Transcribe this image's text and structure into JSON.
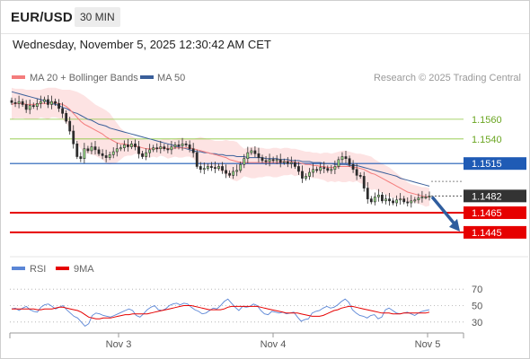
{
  "header": {
    "symbol": "EUR/USD",
    "interval": "30 MIN",
    "datetime": "Wednesday, November 5, 2025 12:30:42 AM CET"
  },
  "legend": {
    "ma20": "MA 20 + Bollinger Bands",
    "ma50": "MA 50",
    "research": "Research © 2025 Trading Central"
  },
  "colors": {
    "ma20": "#f47c7c",
    "ma50": "#3a5f9a",
    "band_fill": "#fde3e3",
    "green_level": "#8cc63f",
    "blue_level": "#1f5bb5",
    "red_level": "#e60000",
    "current": "#333333",
    "arrow": "#2f5d9e",
    "rsi": "#5b86d6",
    "rsi_ma": "#e60000"
  },
  "chart_data": [
    {
      "type": "candlestick",
      "title": "EUR/USD",
      "ylim": [
        1.1423,
        1.159
      ],
      "x_ticks": [
        "Nov 3",
        "Nov 4",
        "Nov 5"
      ],
      "levels": [
        {
          "value": "1.1560",
          "kind": "resistance"
        },
        {
          "value": "1.1540",
          "kind": "resistance"
        },
        {
          "value": "1.1515",
          "kind": "pivot"
        },
        {
          "value": "1.1482",
          "kind": "current"
        },
        {
          "value": "1.1465",
          "kind": "support"
        },
        {
          "value": "1.1445",
          "kind": "support"
        }
      ],
      "closes": [
        1.1577,
        1.1576,
        1.1578,
        1.1575,
        1.157,
        1.1574,
        1.1573,
        1.1576,
        1.1578,
        1.158,
        1.1575,
        1.1578,
        1.1576,
        1.1571,
        1.1566,
        1.1558,
        1.1548,
        1.1535,
        1.1522,
        1.152,
        1.153,
        1.1528,
        1.1532,
        1.1529,
        1.1525,
        1.1523,
        1.1521,
        1.1524,
        1.1527,
        1.153,
        1.1531,
        1.1534,
        1.1532,
        1.1535,
        1.1532,
        1.1525,
        1.1522,
        1.1526,
        1.1529,
        1.1531,
        1.153,
        1.1532,
        1.153,
        1.1529,
        1.1532,
        1.1534,
        1.1533,
        1.1535,
        1.1534,
        1.153,
        1.1526,
        1.1512,
        1.1509,
        1.151,
        1.1512,
        1.1511,
        1.151,
        1.1512,
        1.1508,
        1.1505,
        1.1503,
        1.1507,
        1.1508,
        1.1514,
        1.152,
        1.1526,
        1.1528,
        1.1525,
        1.1521,
        1.1518,
        1.1517,
        1.1519,
        1.1518,
        1.1519,
        1.1516,
        1.1517,
        1.1515,
        1.1516,
        1.1512,
        1.1507,
        1.15,
        1.1502,
        1.1506,
        1.1509,
        1.1508,
        1.1511,
        1.151,
        1.1508,
        1.1509,
        1.1512,
        1.1519,
        1.1522,
        1.152,
        1.1514,
        1.1509,
        1.1503,
        1.1502,
        1.149,
        1.1479,
        1.1476,
        1.1481,
        1.1483,
        1.1477,
        1.1479,
        1.1477,
        1.1475,
        1.1478,
        1.1479,
        1.1476,
        1.1475,
        1.1477,
        1.1478,
        1.148,
        1.1481,
        1.1481,
        1.1482
      ],
      "ma20": [
        1.1575,
        1.1576,
        1.1576,
        1.1576,
        1.1575,
        1.1575,
        1.1575,
        1.1575,
        1.1576,
        1.1576,
        1.1576,
        1.1577,
        1.1577,
        1.1576,
        1.1575,
        1.1573,
        1.157,
        1.1566,
        1.1562,
        1.1558,
        1.1555,
        1.1553,
        1.1551,
        1.1549,
        1.1547,
        1.1545,
        1.1542,
        1.154,
        1.1538,
        1.1536,
        1.1535,
        1.1535,
        1.1534,
        1.1533,
        1.1533,
        1.1532,
        1.1531,
        1.153,
        1.153,
        1.153,
        1.153,
        1.1531,
        1.1531,
        1.153,
        1.153,
        1.1531,
        1.1531,
        1.1531,
        1.1531,
        1.1531,
        1.153,
        1.1529,
        1.1528,
        1.1527,
        1.1526,
        1.1525,
        1.1524,
        1.1523,
        1.1522,
        1.1521,
        1.1519,
        1.1518,
        1.1517,
        1.1516,
        1.1516,
        1.1516,
        1.1516,
        1.1516,
        1.1516,
        1.1516,
        1.1516,
        1.1516,
        1.1516,
        1.1516,
        1.1516,
        1.1517,
        1.1517,
        1.1517,
        1.1516,
        1.1516,
        1.1515,
        1.1514,
        1.1514,
        1.1513,
        1.1513,
        1.1512,
        1.1512,
        1.1511,
        1.1511,
        1.1511,
        1.1512,
        1.1512,
        1.1512,
        1.1512,
        1.1511,
        1.1511,
        1.151,
        1.1509,
        1.1507,
        1.1505,
        1.1504,
        1.1502,
        1.15,
        1.1498,
        1.1496,
        1.1494,
        1.1492,
        1.149,
        1.1488,
        1.1486,
        1.1485,
        1.1484,
        1.1483,
        1.1482,
        1.1481,
        1.1481
      ],
      "ma50": [
        1.1588,
        1.1587,
        1.1586,
        1.1585,
        1.1584,
        1.1583,
        1.1582,
        1.1581,
        1.158,
        1.1579,
        1.1578,
        1.1576,
        1.1575,
        1.1574,
        1.1572,
        1.1571,
        1.1569,
        1.1567,
        1.1566,
        1.1564,
        1.1562,
        1.156,
        1.1559,
        1.1557,
        1.1555,
        1.1554,
        1.1553,
        1.1551,
        1.155,
        1.1549,
        1.1548,
        1.1547,
        1.1546,
        1.1545,
        1.1544,
        1.1543,
        1.1542,
        1.1541,
        1.154,
        1.1539,
        1.1538,
        1.1537,
        1.1536,
        1.1535,
        1.1534,
        1.1533,
        1.1532,
        1.1531,
        1.153,
        1.1529,
        1.1528,
        1.1527,
        1.1527,
        1.1526,
        1.1526,
        1.1525,
        1.1525,
        1.1524,
        1.1524,
        1.1523,
        1.1523,
        1.1523,
        1.1522,
        1.1522,
        1.1522,
        1.1521,
        1.1521,
        1.1521,
        1.1521,
        1.1521,
        1.152,
        1.152,
        1.152,
        1.152,
        1.1519,
        1.1519,
        1.1519,
        1.1518,
        1.1518,
        1.1518,
        1.1517,
        1.1517,
        1.1517,
        1.1516,
        1.1516,
        1.1516,
        1.1515,
        1.1515,
        1.1515,
        1.1514,
        1.1514,
        1.1514,
        1.1514,
        1.1513,
        1.1513,
        1.1513,
        1.1512,
        1.1511,
        1.151,
        1.1509,
        1.1508,
        1.1507,
        1.1506,
        1.1505,
        1.1504,
        1.1503,
        1.1502,
        1.15,
        1.1499,
        1.1498,
        1.1497,
        1.1496,
        1.1495,
        1.1494,
        1.1493,
        1.1492
      ],
      "band_upper": [
        1.1592,
        1.1591,
        1.1591,
        1.1591,
        1.159,
        1.159,
        1.159,
        1.159,
        1.159,
        1.1591,
        1.1592,
        1.1592,
        1.1592,
        1.1591,
        1.159,
        1.159,
        1.159,
        1.1589,
        1.1588,
        1.1586,
        1.1584,
        1.1581,
        1.1578,
        1.1575,
        1.1573,
        1.1571,
        1.1569,
        1.1566,
        1.1561,
        1.1556,
        1.1551,
        1.1548,
        1.1545,
        1.1543,
        1.1541,
        1.154,
        1.154,
        1.1539,
        1.1539,
        1.1538,
        1.1539,
        1.1539,
        1.154,
        1.154,
        1.1539,
        1.154,
        1.1541,
        1.1541,
        1.154,
        1.154,
        1.154,
        1.1541,
        1.1542,
        1.1541,
        1.154,
        1.1539,
        1.1538,
        1.1538,
        1.1538,
        1.1539,
        1.1538,
        1.1538,
        1.1537,
        1.1533,
        1.153,
        1.1531,
        1.1532,
        1.1532,
        1.1531,
        1.1531,
        1.153,
        1.153,
        1.1531,
        1.1531,
        1.153,
        1.1531,
        1.1531,
        1.153,
        1.153,
        1.1529,
        1.1528,
        1.1527,
        1.1527,
        1.1526,
        1.1526,
        1.1525,
        1.1526,
        1.1526,
        1.1525,
        1.1526,
        1.1527,
        1.1528,
        1.1528,
        1.1527,
        1.1526,
        1.1525,
        1.1525,
        1.1524,
        1.1523,
        1.1522,
        1.1519,
        1.1517,
        1.1515,
        1.1513,
        1.1511,
        1.1508,
        1.1505,
        1.1502,
        1.1499,
        1.1496,
        1.1494,
        1.1493,
        1.1492,
        1.1491,
        1.1491,
        1.149
      ],
      "band_lower": [
        1.156,
        1.1561,
        1.1561,
        1.1561,
        1.156,
        1.156,
        1.156,
        1.156,
        1.1562,
        1.1561,
        1.156,
        1.1562,
        1.1562,
        1.1561,
        1.156,
        1.1556,
        1.155,
        1.1543,
        1.1536,
        1.153,
        1.1526,
        1.1525,
        1.1524,
        1.1523,
        1.1521,
        1.1519,
        1.1515,
        1.1514,
        1.1515,
        1.1516,
        1.1519,
        1.1522,
        1.1523,
        1.1523,
        1.1525,
        1.1524,
        1.1522,
        1.1521,
        1.1521,
        1.1522,
        1.1521,
        1.1523,
        1.1522,
        1.152,
        1.1521,
        1.1522,
        1.1521,
        1.1521,
        1.1522,
        1.1522,
        1.152,
        1.1517,
        1.1514,
        1.1513,
        1.1512,
        1.1511,
        1.151,
        1.1508,
        1.1506,
        1.1503,
        1.15,
        1.1498,
        1.1497,
        1.1499,
        1.1502,
        1.1501,
        1.15,
        1.15,
        1.1501,
        1.1501,
        1.1502,
        1.1502,
        1.1501,
        1.1501,
        1.1502,
        1.1503,
        1.1503,
        1.1504,
        1.1502,
        1.1503,
        1.1502,
        1.1501,
        1.1501,
        1.15,
        1.15,
        1.1499,
        1.1498,
        1.1496,
        1.1497,
        1.1496,
        1.1497,
        1.1496,
        1.1496,
        1.1497,
        1.1496,
        1.1497,
        1.1495,
        1.1494,
        1.1491,
        1.1488,
        1.1489,
        1.1487,
        1.1485,
        1.1483,
        1.1481,
        1.148,
        1.1479,
        1.1478,
        1.1477,
        1.1476,
        1.1476,
        1.1475,
        1.1474,
        1.1473,
        1.1471,
        1.1472
      ]
    },
    {
      "type": "line",
      "title": "RSI",
      "legend": [
        "RSI",
        "9MA"
      ],
      "ylim": [
        20,
        80
      ],
      "y_ticks": [
        "70",
        "50",
        "30"
      ],
      "rsi": [
        46,
        47,
        44,
        47,
        49,
        45,
        43,
        42,
        48,
        51,
        52,
        49,
        46,
        48,
        50,
        45,
        41,
        37,
        35,
        30,
        25,
        28,
        38,
        41,
        40,
        38,
        37,
        36,
        38,
        40,
        42,
        44,
        46,
        44,
        38,
        36,
        40,
        45,
        48,
        50,
        45,
        44,
        46,
        50,
        52,
        53,
        51,
        53,
        52,
        48,
        45,
        43,
        40,
        41,
        44,
        47,
        46,
        50,
        55,
        58,
        53,
        48,
        44,
        49,
        48,
        49,
        52,
        50,
        44,
        40,
        39,
        43,
        42,
        41,
        42,
        40,
        41,
        42,
        36,
        31,
        33,
        34,
        41,
        43,
        44,
        47,
        49,
        47,
        48,
        51,
        55,
        58,
        54,
        45,
        41,
        38,
        37,
        35,
        38,
        39,
        34,
        36,
        45,
        47,
        44,
        41,
        40,
        41,
        42,
        40,
        38,
        41,
        43,
        44,
        45
      ],
      "rsi_9ma": [
        46,
        46,
        46,
        46,
        46,
        46,
        46,
        45,
        45,
        46,
        46,
        46,
        47,
        48,
        48,
        47,
        46,
        45,
        44,
        42,
        39,
        36,
        35,
        34,
        34,
        35,
        35,
        35,
        36,
        37,
        38,
        39,
        39,
        40,
        40,
        40,
        40,
        40,
        41,
        42,
        43,
        44,
        45,
        46,
        47,
        48,
        49,
        50,
        50,
        50,
        49,
        48,
        47,
        46,
        45,
        45,
        45,
        45,
        46,
        48,
        49,
        49,
        49,
        49,
        49,
        49,
        49,
        49,
        48,
        47,
        46,
        45,
        44,
        43,
        42,
        41,
        41,
        41,
        41,
        40,
        39,
        38,
        37,
        37,
        37,
        38,
        40,
        42,
        44,
        45,
        47,
        48,
        49,
        49,
        48,
        47,
        46,
        45,
        44,
        43,
        42,
        41,
        41,
        41,
        40,
        40,
        40,
        41,
        41,
        41,
        41,
        41,
        41,
        41,
        42
      ]
    }
  ],
  "arrow": {
    "direction": "down"
  }
}
